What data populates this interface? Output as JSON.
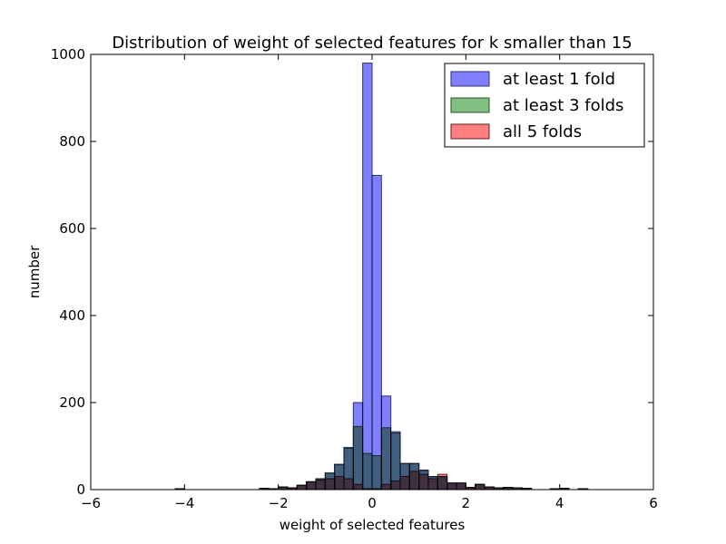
{
  "chart_data": {
    "type": "bar",
    "subtype": "histogram-overlay",
    "title": "Distribution of weight of selected features for k smaller than 15",
    "xlabel": "weight of selected features",
    "ylabel": "number",
    "xlim": [
      -6,
      6
    ],
    "ylim": [
      0,
      1000
    ],
    "xticks": [
      -6,
      -4,
      -2,
      0,
      2,
      4,
      6
    ],
    "yticks": [
      0,
      200,
      400,
      600,
      800,
      1000
    ],
    "xtick_labels": [
      "−6",
      "−4",
      "−2",
      "0",
      "2",
      "4",
      "6"
    ],
    "ytick_labels": [
      "0",
      "200",
      "400",
      "600",
      "800",
      "1000"
    ],
    "bin_width": 0.2,
    "grid": false,
    "legend_position": "top-right",
    "series": [
      {
        "name": "at least 1 fold",
        "color": "#7f7fff",
        "edge": "#2f2f6f",
        "bins": [
          {
            "x0": -4.2,
            "v": 2
          },
          {
            "x0": -2.4,
            "v": 3
          },
          {
            "x0": -2.2,
            "v": 2
          },
          {
            "x0": -2.0,
            "v": 6
          },
          {
            "x0": -1.8,
            "v": 4
          },
          {
            "x0": -1.6,
            "v": 10
          },
          {
            "x0": -1.4,
            "v": 18
          },
          {
            "x0": -1.2,
            "v": 25
          },
          {
            "x0": -1.0,
            "v": 38
          },
          {
            "x0": -0.8,
            "v": 58
          },
          {
            "x0": -0.6,
            "v": 97
          },
          {
            "x0": -0.4,
            "v": 200
          },
          {
            "x0": -0.2,
            "v": 980
          },
          {
            "x0": 0.0,
            "v": 722
          },
          {
            "x0": 0.2,
            "v": 215
          },
          {
            "x0": 0.4,
            "v": 133
          },
          {
            "x0": 0.6,
            "v": 60
          },
          {
            "x0": 0.8,
            "v": 60
          },
          {
            "x0": 1.0,
            "v": 45
          },
          {
            "x0": 1.2,
            "v": 30
          },
          {
            "x0": 1.4,
            "v": 30
          },
          {
            "x0": 1.6,
            "v": 15
          },
          {
            "x0": 1.8,
            "v": 15
          },
          {
            "x0": 2.0,
            "v": 5
          },
          {
            "x0": 2.2,
            "v": 12
          },
          {
            "x0": 2.4,
            "v": 6
          },
          {
            "x0": 2.6,
            "v": 4
          },
          {
            "x0": 2.8,
            "v": 5
          },
          {
            "x0": 3.0,
            "v": 4
          },
          {
            "x0": 3.2,
            "v": 3
          },
          {
            "x0": 3.8,
            "v": 2
          },
          {
            "x0": 4.0,
            "v": 3
          },
          {
            "x0": 4.4,
            "v": 2
          }
        ]
      },
      {
        "name": "at least 3 folds",
        "color": "#7fbf7f",
        "edge": "#2f4f2f",
        "bins": [
          {
            "x0": -4.2,
            "v": 2
          },
          {
            "x0": -2.4,
            "v": 3
          },
          {
            "x0": -2.2,
            "v": 2
          },
          {
            "x0": -2.0,
            "v": 6
          },
          {
            "x0": -1.8,
            "v": 4
          },
          {
            "x0": -1.6,
            "v": 10
          },
          {
            "x0": -1.4,
            "v": 18
          },
          {
            "x0": -1.2,
            "v": 25
          },
          {
            "x0": -1.0,
            "v": 38
          },
          {
            "x0": -0.8,
            "v": 58
          },
          {
            "x0": -0.6,
            "v": 95
          },
          {
            "x0": -0.4,
            "v": 145
          },
          {
            "x0": -0.2,
            "v": 83
          },
          {
            "x0": 0.0,
            "v": 78
          },
          {
            "x0": 0.2,
            "v": 142
          },
          {
            "x0": 0.4,
            "v": 130
          },
          {
            "x0": 0.6,
            "v": 60
          },
          {
            "x0": 0.8,
            "v": 60
          },
          {
            "x0": 1.0,
            "v": 44
          },
          {
            "x0": 1.2,
            "v": 30
          },
          {
            "x0": 1.4,
            "v": 30
          },
          {
            "x0": 1.6,
            "v": 15
          },
          {
            "x0": 1.8,
            "v": 15
          },
          {
            "x0": 2.0,
            "v": 5
          },
          {
            "x0": 2.2,
            "v": 12
          },
          {
            "x0": 2.4,
            "v": 6
          },
          {
            "x0": 2.6,
            "v": 4
          },
          {
            "x0": 2.8,
            "v": 5
          },
          {
            "x0": 3.0,
            "v": 4
          },
          {
            "x0": 3.2,
            "v": 3
          },
          {
            "x0": 3.8,
            "v": 2
          },
          {
            "x0": 4.0,
            "v": 3
          },
          {
            "x0": 4.4,
            "v": 2
          }
        ]
      },
      {
        "name": "all 5 folds",
        "color": "#ff7f7f",
        "edge": "#5f1f1f",
        "bins": [
          {
            "x0": -4.2,
            "v": 2
          },
          {
            "x0": -2.4,
            "v": 3
          },
          {
            "x0": -2.2,
            "v": 2
          },
          {
            "x0": -2.0,
            "v": 6
          },
          {
            "x0": -1.8,
            "v": 4
          },
          {
            "x0": -1.6,
            "v": 10
          },
          {
            "x0": -1.4,
            "v": 18
          },
          {
            "x0": -1.2,
            "v": 22
          },
          {
            "x0": -1.0,
            "v": 25
          },
          {
            "x0": -0.8,
            "v": 30
          },
          {
            "x0": -0.6,
            "v": 25
          },
          {
            "x0": -0.4,
            "v": 12
          },
          {
            "x0": -0.2,
            "v": 2
          },
          {
            "x0": 0.0,
            "v": 2
          },
          {
            "x0": 0.2,
            "v": 12
          },
          {
            "x0": 0.4,
            "v": 20
          },
          {
            "x0": 0.6,
            "v": 30
          },
          {
            "x0": 0.8,
            "v": 42
          },
          {
            "x0": 1.0,
            "v": 35
          },
          {
            "x0": 1.2,
            "v": 25
          },
          {
            "x0": 1.4,
            "v": 35
          },
          {
            "x0": 1.6,
            "v": 15
          },
          {
            "x0": 1.8,
            "v": 15
          },
          {
            "x0": 2.0,
            "v": 5
          },
          {
            "x0": 2.2,
            "v": 12
          },
          {
            "x0": 2.4,
            "v": 6
          },
          {
            "x0": 2.6,
            "v": 4
          },
          {
            "x0": 2.8,
            "v": 5
          },
          {
            "x0": 3.0,
            "v": 4
          },
          {
            "x0": 3.2,
            "v": 3
          },
          {
            "x0": 3.8,
            "v": 2
          },
          {
            "x0": 4.0,
            "v": 3
          },
          {
            "x0": 4.4,
            "v": 2
          }
        ]
      }
    ]
  }
}
